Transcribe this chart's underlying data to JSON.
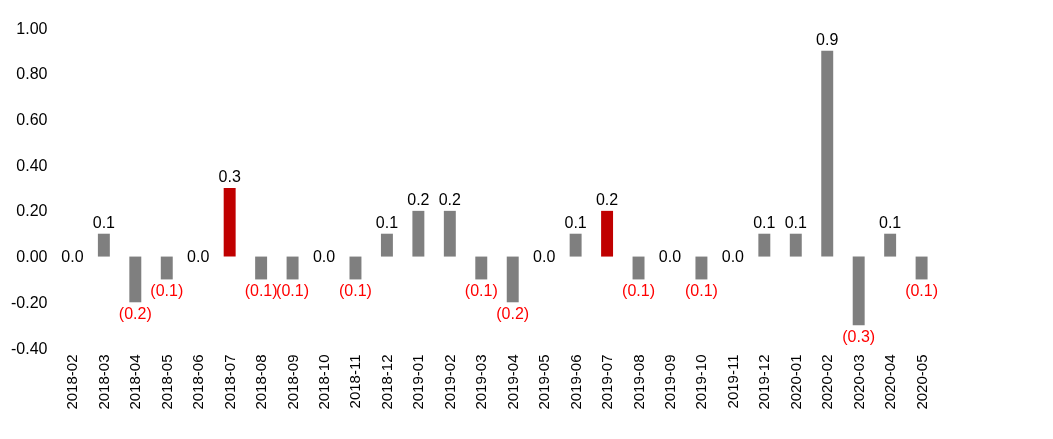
{
  "chart_data": {
    "type": "bar",
    "categories": [
      "2018-02",
      "2018-03",
      "2018-04",
      "2018-05",
      "2018-06",
      "2018-07",
      "2018-08",
      "2018-09",
      "2018-10",
      "2018-11",
      "2018-12",
      "2019-01",
      "2019-02",
      "2019-03",
      "2019-04",
      "2019-05",
      "2019-06",
      "2019-07",
      "2019-08",
      "2019-09",
      "2019-10",
      "2019-11",
      "2019-12",
      "2020-01",
      "2020-02",
      "2020-03",
      "2020-04",
      "2020-05"
    ],
    "values": [
      0.0,
      0.1,
      -0.2,
      -0.1,
      0.0,
      0.3,
      -0.1,
      -0.1,
      0.0,
      -0.1,
      0.1,
      0.2,
      0.2,
      -0.1,
      -0.2,
      0.0,
      0.1,
      0.2,
      -0.1,
      0.0,
      -0.1,
      0.0,
      0.1,
      0.1,
      0.9,
      -0.3,
      0.1,
      -0.1
    ],
    "colors": [
      "#7f7f7f",
      "#7f7f7f",
      "#7f7f7f",
      "#7f7f7f",
      "#7f7f7f",
      "#c00000",
      "#7f7f7f",
      "#7f7f7f",
      "#7f7f7f",
      "#7f7f7f",
      "#7f7f7f",
      "#7f7f7f",
      "#7f7f7f",
      "#7f7f7f",
      "#7f7f7f",
      "#7f7f7f",
      "#7f7f7f",
      "#c00000",
      "#7f7f7f",
      "#7f7f7f",
      "#7f7f7f",
      "#7f7f7f",
      "#7f7f7f",
      "#7f7f7f",
      "#7f7f7f",
      "#7f7f7f",
      "#7f7f7f",
      "#7f7f7f"
    ],
    "value_labels": [
      "0.0",
      "0.1",
      "(0.2)",
      "(0.1)",
      "0.0",
      "0.3",
      "(0.1)",
      "(0.1)",
      "0.0",
      "(0.1)",
      "0.1",
      "0.2",
      "0.2",
      "(0.1)",
      "(0.2)",
      "0.0",
      "0.1",
      "0.2",
      "(0.1)",
      "0.0",
      "(0.1)",
      "0.0",
      "0.1",
      "0.1",
      "0.9",
      "(0.3)",
      "0.1",
      "(0.1)"
    ],
    "ylim": [
      -0.4,
      1.0
    ],
    "yticks": [
      {
        "value": -0.4,
        "label": "-0.40"
      },
      {
        "value": -0.2,
        "label": "-0.20"
      },
      {
        "value": 0,
        "label": "0.00"
      },
      {
        "value": 0.2,
        "label": "0.20"
      },
      {
        "value": 0.4,
        "label": "0.40"
      },
      {
        "value": 0.6,
        "label": "0.60"
      },
      {
        "value": 0.8,
        "label": "0.80"
      },
      {
        "value": 1.0,
        "label": "1.00"
      }
    ],
    "grid": false
  }
}
